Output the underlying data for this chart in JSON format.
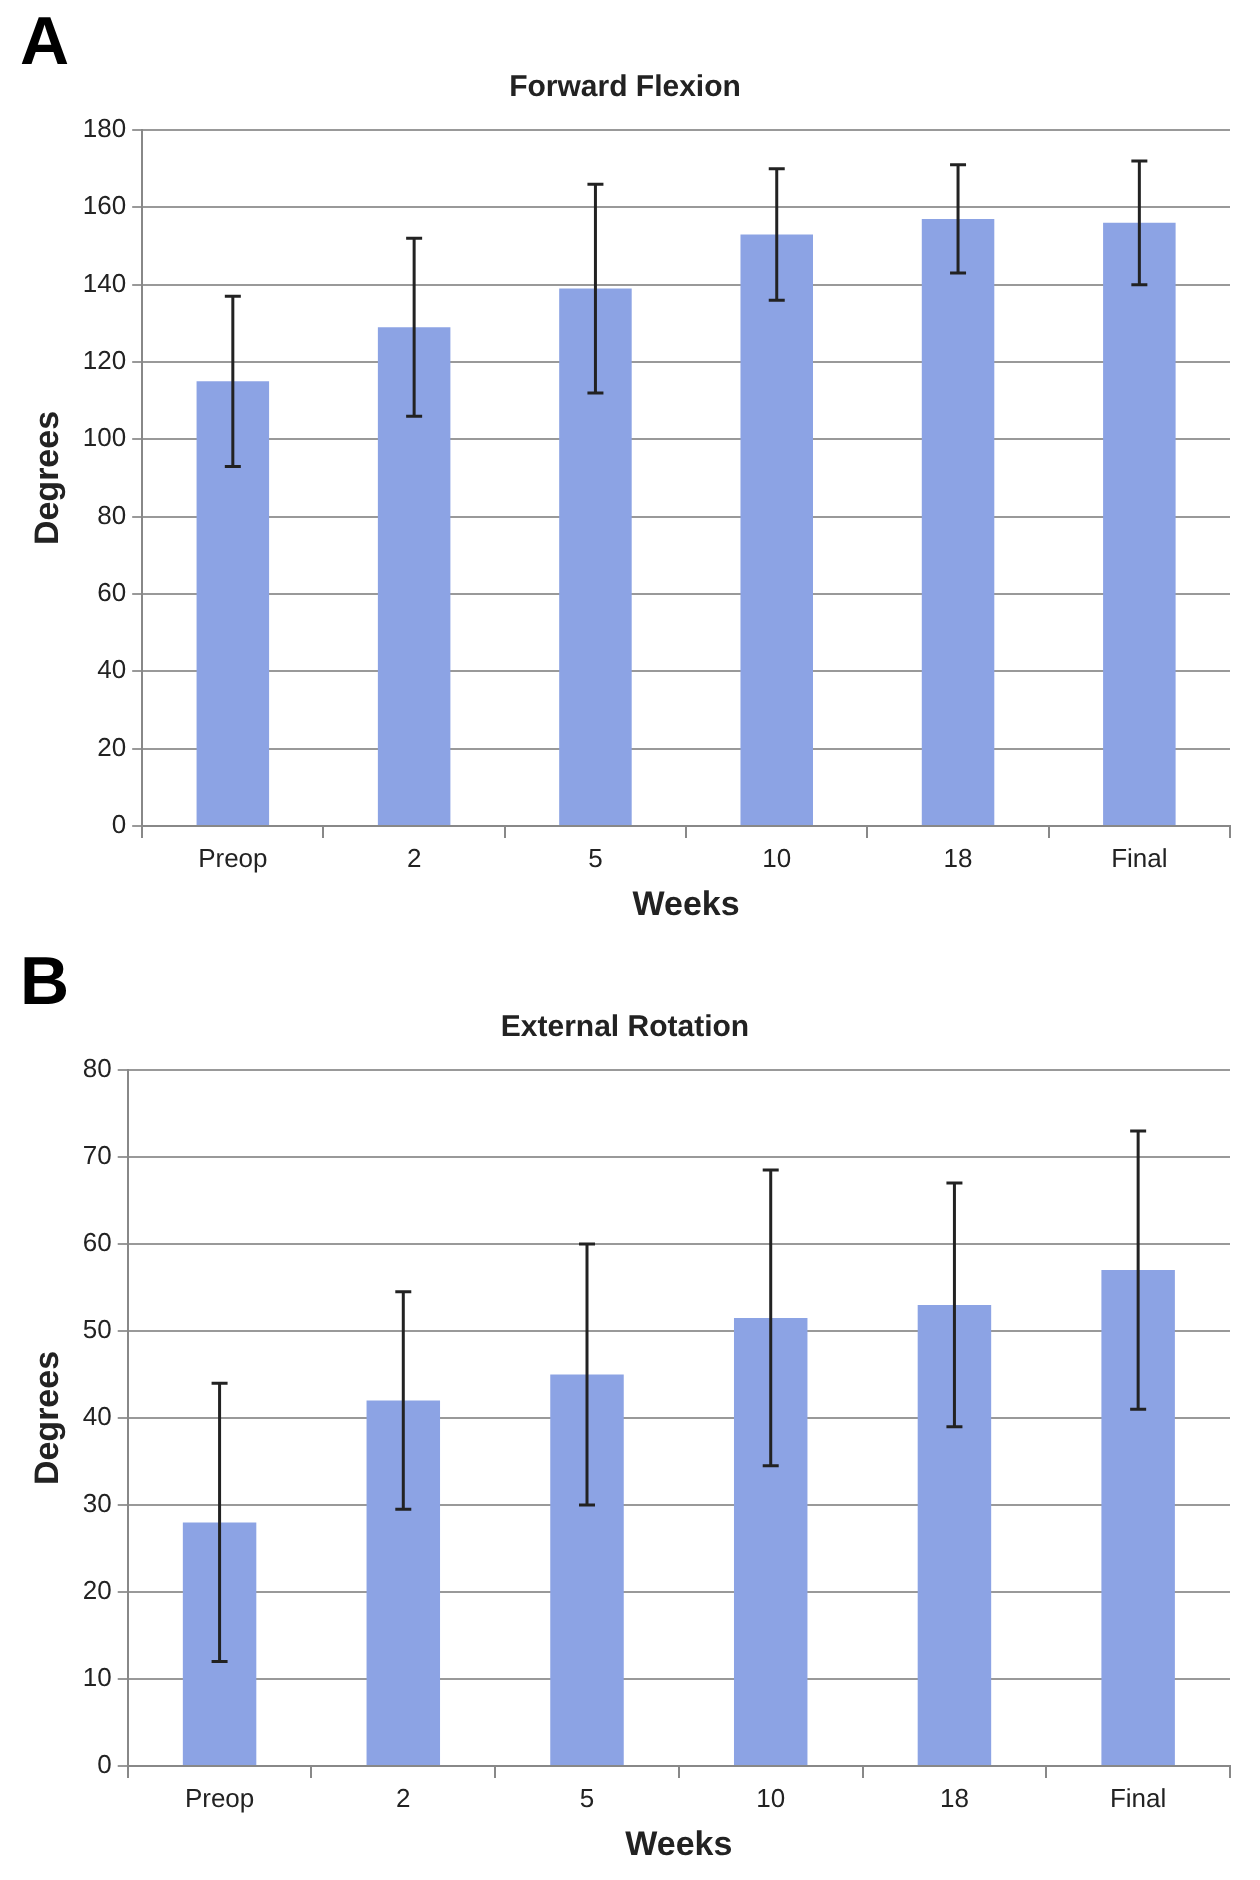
{
  "chart_data": [
    {
      "type": "bar",
      "annotations": [
        "A"
      ],
      "title": "Forward Flexion",
      "xlabel": "Weeks",
      "ylabel": "Degrees",
      "categories": [
        "Preop",
        "2",
        "5",
        "10",
        "18",
        "Final"
      ],
      "values": [
        115,
        129,
        139,
        153,
        157,
        156
      ],
      "errors": [
        22,
        23,
        27,
        17,
        14,
        16
      ],
      "color": "#8ca3e4",
      "ylim": [
        0,
        180
      ],
      "yticks": [
        0,
        20,
        40,
        60,
        80,
        100,
        120,
        140,
        160,
        180
      ],
      "grid": "y"
    },
    {
      "type": "bar",
      "annotations": [
        "B"
      ],
      "title": "External Rotation",
      "xlabel": "Weeks",
      "ylabel": "Degrees",
      "categories": [
        "Preop",
        "2",
        "5",
        "10",
        "18",
        "Final"
      ],
      "values": [
        28,
        42,
        45,
        51.5,
        53,
        57
      ],
      "errors": [
        16,
        12.5,
        15,
        17,
        14,
        16
      ],
      "color": "#8ca3e4",
      "ylim": [
        0,
        80
      ],
      "yticks": [
        0,
        10,
        20,
        30,
        40,
        50,
        60,
        70,
        80
      ],
      "grid": "y"
    }
  ]
}
